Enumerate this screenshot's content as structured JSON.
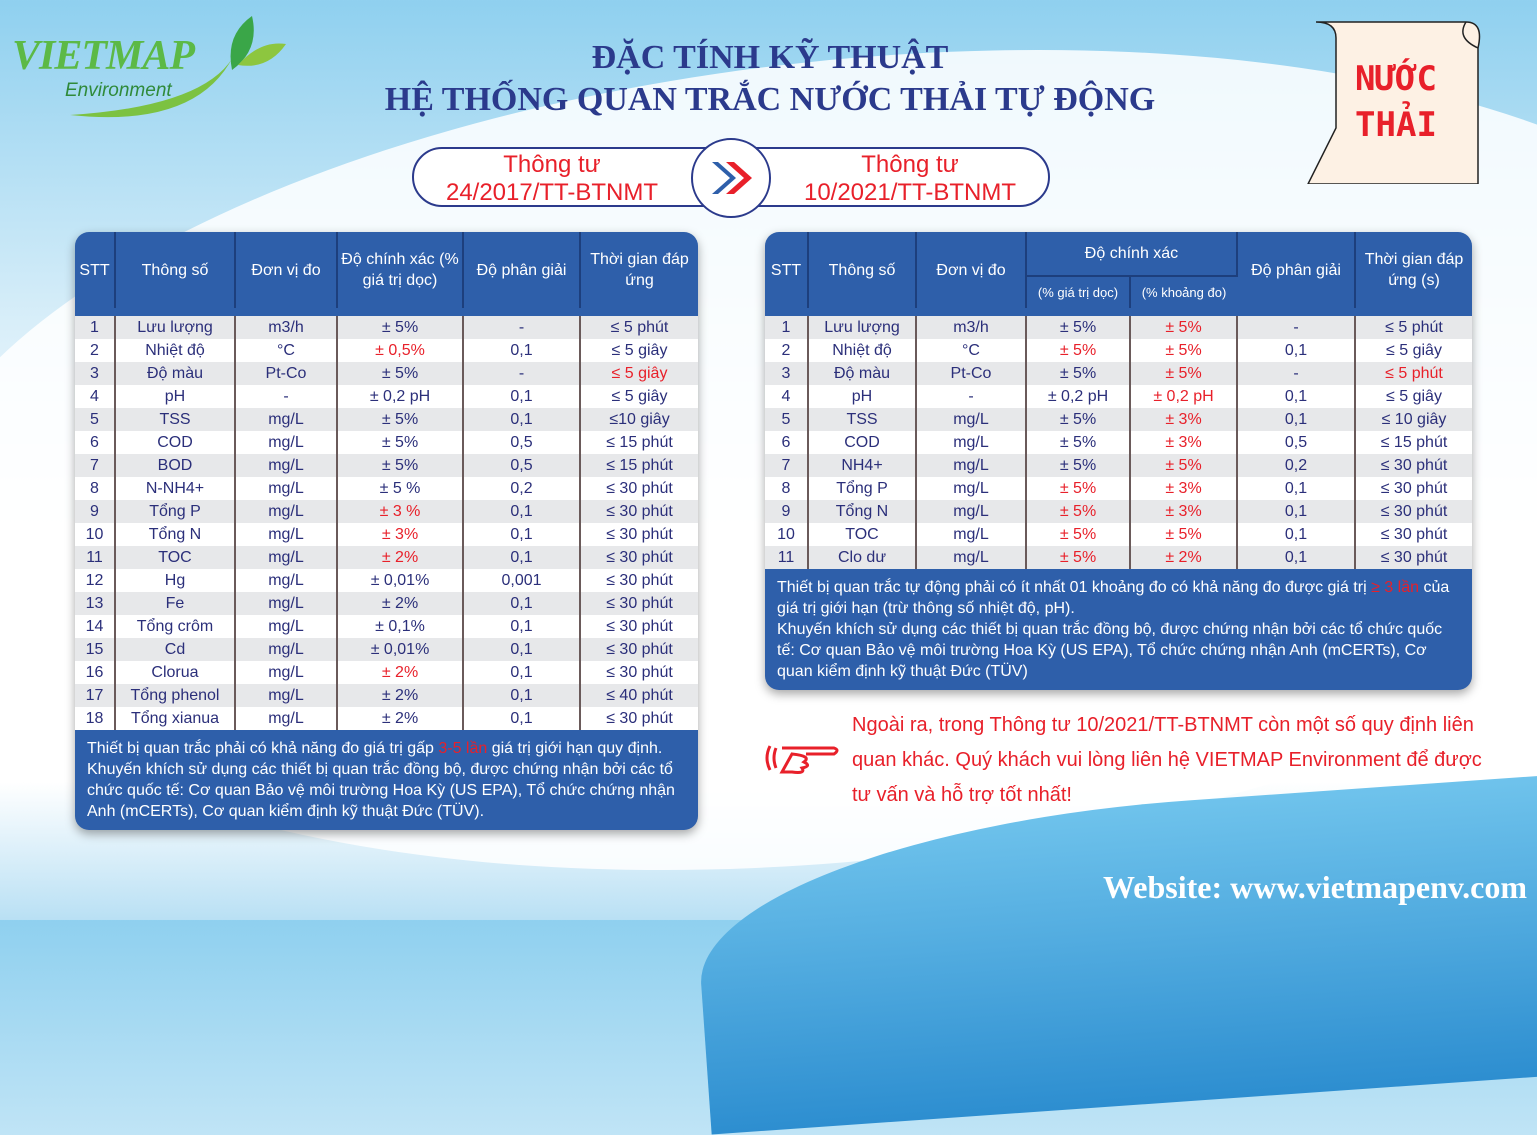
{
  "logo": {
    "brand": "VIETMAP",
    "sub": "Environment"
  },
  "title": {
    "line1": "ĐẶC TÍNH KỸ THUẬT",
    "line2": "HỆ THỐNG QUAN TRẮC NƯỚC THẢI TỰ ĐỘNG"
  },
  "badge": {
    "line1": "NƯỚC",
    "line2": "THẢI"
  },
  "compare": {
    "left_l1": "Thông tư",
    "left_l2": "24/2017/TT-BTNMT",
    "right_l1": "Thông tư",
    "right_l2": "10/2021/TT-BTNMT",
    "arrow_icon": "double-chevron-right"
  },
  "colors": {
    "header": "#2e5faa",
    "highlight": "#e8202a",
    "text": "#2b2f7a"
  },
  "left_table": {
    "headers": [
      "STT",
      "Thông số",
      "Đơn vị đo",
      "Độ chính xác (% giá trị dọc)",
      "Độ phân giải",
      "Thời gian đáp ứng"
    ],
    "rows": [
      {
        "c": [
          "1",
          "Lưu lượng",
          "m3/h",
          "± 5%",
          "-",
          "≤ 5 phút"
        ],
        "red": []
      },
      {
        "c": [
          "2",
          "Nhiệt độ",
          "°C",
          "± 0,5%",
          "0,1",
          "≤ 5 giây"
        ],
        "red": [
          3
        ]
      },
      {
        "c": [
          "3",
          "Độ màu",
          "Pt-Co",
          "± 5%",
          "-",
          "≤ 5 giây"
        ],
        "red": [
          5
        ]
      },
      {
        "c": [
          "4",
          "pH",
          "-",
          "± 0,2 pH",
          "0,1",
          "≤ 5 giây"
        ],
        "red": []
      },
      {
        "c": [
          "5",
          "TSS",
          "mg/L",
          "± 5%",
          "0,1",
          "≤10 giây"
        ],
        "red": []
      },
      {
        "c": [
          "6",
          "COD",
          "mg/L",
          "± 5%",
          "0,5",
          "≤ 15 phút"
        ],
        "red": []
      },
      {
        "c": [
          "7",
          "BOD",
          "mg/L",
          "± 5%",
          "0,5",
          "≤ 15 phút"
        ],
        "red": []
      },
      {
        "c": [
          "8",
          "N-NH4+",
          "mg/L",
          "± 5 %",
          "0,2",
          "≤ 30 phút"
        ],
        "red": []
      },
      {
        "c": [
          "9",
          "Tổng P",
          "mg/L",
          "± 3 %",
          "0,1",
          "≤ 30 phút"
        ],
        "red": [
          3
        ]
      },
      {
        "c": [
          "10",
          "Tổng N",
          "mg/L",
          "± 3%",
          "0,1",
          "≤ 30 phút"
        ],
        "red": [
          3
        ]
      },
      {
        "c": [
          "11",
          "TOC",
          "mg/L",
          "± 2%",
          "0,1",
          "≤ 30 phút"
        ],
        "red": [
          3
        ]
      },
      {
        "c": [
          "12",
          "Hg",
          "mg/L",
          "± 0,01%",
          "0,001",
          "≤ 30 phút"
        ],
        "red": []
      },
      {
        "c": [
          "13",
          "Fe",
          "mg/L",
          "± 2%",
          "0,1",
          "≤ 30 phút"
        ],
        "red": []
      },
      {
        "c": [
          "14",
          "Tổng crôm",
          "mg/L",
          "± 0,1%",
          "0,1",
          "≤ 30 phút"
        ],
        "red": []
      },
      {
        "c": [
          "15",
          "Cd",
          "mg/L",
          "± 0,01%",
          "0,1",
          "≤ 30 phút"
        ],
        "red": []
      },
      {
        "c": [
          "16",
          "Clorua",
          "mg/L",
          "± 2%",
          "0,1",
          "≤ 30 phút"
        ],
        "red": [
          3
        ]
      },
      {
        "c": [
          "17",
          "Tổng phenol",
          "mg/L",
          "± 2%",
          "0,1",
          "≤ 40 phút"
        ],
        "red": []
      },
      {
        "c": [
          "18",
          "Tổng xianua",
          "mg/L",
          "± 2%",
          "0,1",
          "≤ 30 phút"
        ],
        "red": []
      }
    ],
    "note_a": "Thiết bị quan trắc phải có khả năng đo giá trị gấp ",
    "note_red": "3-5 lần",
    "note_b": " giá trị giới hạn quy định.",
    "note_2": "Khuyến khích sử dụng các thiết bị quan trắc đồng bộ, được chứng nhận bởi các tổ chức quốc tế: Cơ quan Bảo vệ môi trường Hoa Kỳ (US EPA), Tổ chức chứng nhận Anh (mCERTs), Cơ quan kiểm định kỹ thuật Đức (TÜV)."
  },
  "right_table": {
    "headers": [
      "STT",
      "Thông số",
      "Đơn vị đo",
      "Độ chính xác",
      "Độ phân giải",
      "Thời gian đáp ứng (s)"
    ],
    "subheaders": [
      "(% giá trị dọc)",
      "(% khoảng đo)"
    ],
    "rows": [
      {
        "c": [
          "1",
          "Lưu lượng",
          "m3/h",
          "± 5%",
          "± 5%",
          "-",
          "≤ 5 phút"
        ],
        "red": [
          4
        ]
      },
      {
        "c": [
          "2",
          "Nhiệt độ",
          "°C",
          "± 5%",
          "± 5%",
          "0,1",
          "≤ 5 giây"
        ],
        "red": [
          3,
          4
        ]
      },
      {
        "c": [
          "3",
          "Độ màu",
          "Pt-Co",
          "± 5%",
          "± 5%",
          "-",
          "≤ 5 phút"
        ],
        "red": [
          4,
          6
        ]
      },
      {
        "c": [
          "4",
          "pH",
          "-",
          "± 0,2 pH",
          "± 0,2 pH",
          "0,1",
          "≤ 5 giây"
        ],
        "red": [
          4
        ]
      },
      {
        "c": [
          "5",
          "TSS",
          "mg/L",
          "± 5%",
          "± 3%",
          "0,1",
          "≤ 10 giây"
        ],
        "red": [
          4
        ]
      },
      {
        "c": [
          "6",
          "COD",
          "mg/L",
          "± 5%",
          "± 3%",
          "0,5",
          "≤ 15 phút"
        ],
        "red": [
          4
        ]
      },
      {
        "c": [
          "7",
          "NH4+",
          "mg/L",
          "± 5%",
          "± 5%",
          "0,2",
          "≤ 30 phút"
        ],
        "red": [
          4
        ]
      },
      {
        "c": [
          "8",
          "Tổng P",
          "mg/L",
          "± 5%",
          "± 3%",
          "0,1",
          "≤ 30 phút"
        ],
        "red": [
          3,
          4
        ]
      },
      {
        "c": [
          "9",
          "Tổng N",
          "mg/L",
          "± 5%",
          "± 3%",
          "0,1",
          "≤ 30 phút"
        ],
        "red": [
          3,
          4
        ]
      },
      {
        "c": [
          "10",
          "TOC",
          "mg/L",
          "± 5%",
          "± 5%",
          "0,1",
          "≤ 30 phút"
        ],
        "red": [
          3,
          4
        ]
      },
      {
        "c": [
          "11",
          "Clo dư",
          "mg/L",
          "± 5%",
          "± 2%",
          "0,1",
          "≤ 30 phút"
        ],
        "red": [
          3,
          4
        ]
      }
    ],
    "note_a": "Thiết bị quan trắc tự động phải có ít nhất 01 khoảng đo có khả năng đo được giá trị ",
    "note_red": "≥ 3 lần",
    "note_b": " của giá trị giới hạn (trừ  thông số nhiệt độ, pH).",
    "note_2": "Khuyến khích sử dụng các thiết bị quan trắc đồng bộ, được chứng nhận bởi các tổ chức quốc tế: Cơ quan Bảo vệ môi trường Hoa Kỳ (US EPA), Tổ chức chứng nhận Anh (mCERTs), Cơ quan kiểm định kỹ thuật Đức (TÜV)"
  },
  "callout": {
    "text": "Ngoài ra, trong Thông tư 10/2021/TT-BTNMT còn một số quy định liên quan khác. Quý khách vui lòng liên hệ VIETMAP Environment để được tư vấn và hỗ trợ tốt nhất!",
    "icon": "pointing-hand"
  },
  "website": "Website: www.vietmapenv.com"
}
